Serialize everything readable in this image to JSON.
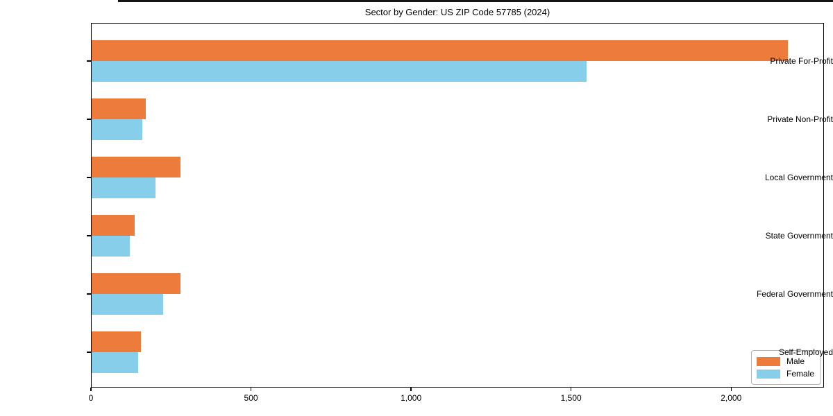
{
  "chart_data": {
    "type": "bar",
    "orientation": "horizontal",
    "title": "Sector by Gender: US ZIP Code 57785 (2024)",
    "categories": [
      "Private For-Profit",
      "Private Non-Profit",
      "Local Government",
      "State Government",
      "Federal Government",
      "Self-Employed"
    ],
    "series": [
      {
        "name": "Male",
        "color": "#ec7b3c",
        "values": [
          2175,
          170,
          278,
          135,
          278,
          154
        ]
      },
      {
        "name": "Female",
        "color": "#87ceeb",
        "values": [
          1545,
          158,
          200,
          120,
          223,
          145
        ]
      }
    ],
    "xlabel": "",
    "ylabel": "",
    "xlim": [
      0,
      2290
    ],
    "x_tick_values": [
      0,
      500,
      1000,
      1500,
      2000
    ],
    "x_tick_labels": [
      "0",
      "500",
      "1,000",
      "1,500",
      "2,000"
    ],
    "grid": false,
    "legend_position": "lower right",
    "spine_color": "#000000",
    "background_color": "#ffffff",
    "top_strip_color": "#151515"
  }
}
